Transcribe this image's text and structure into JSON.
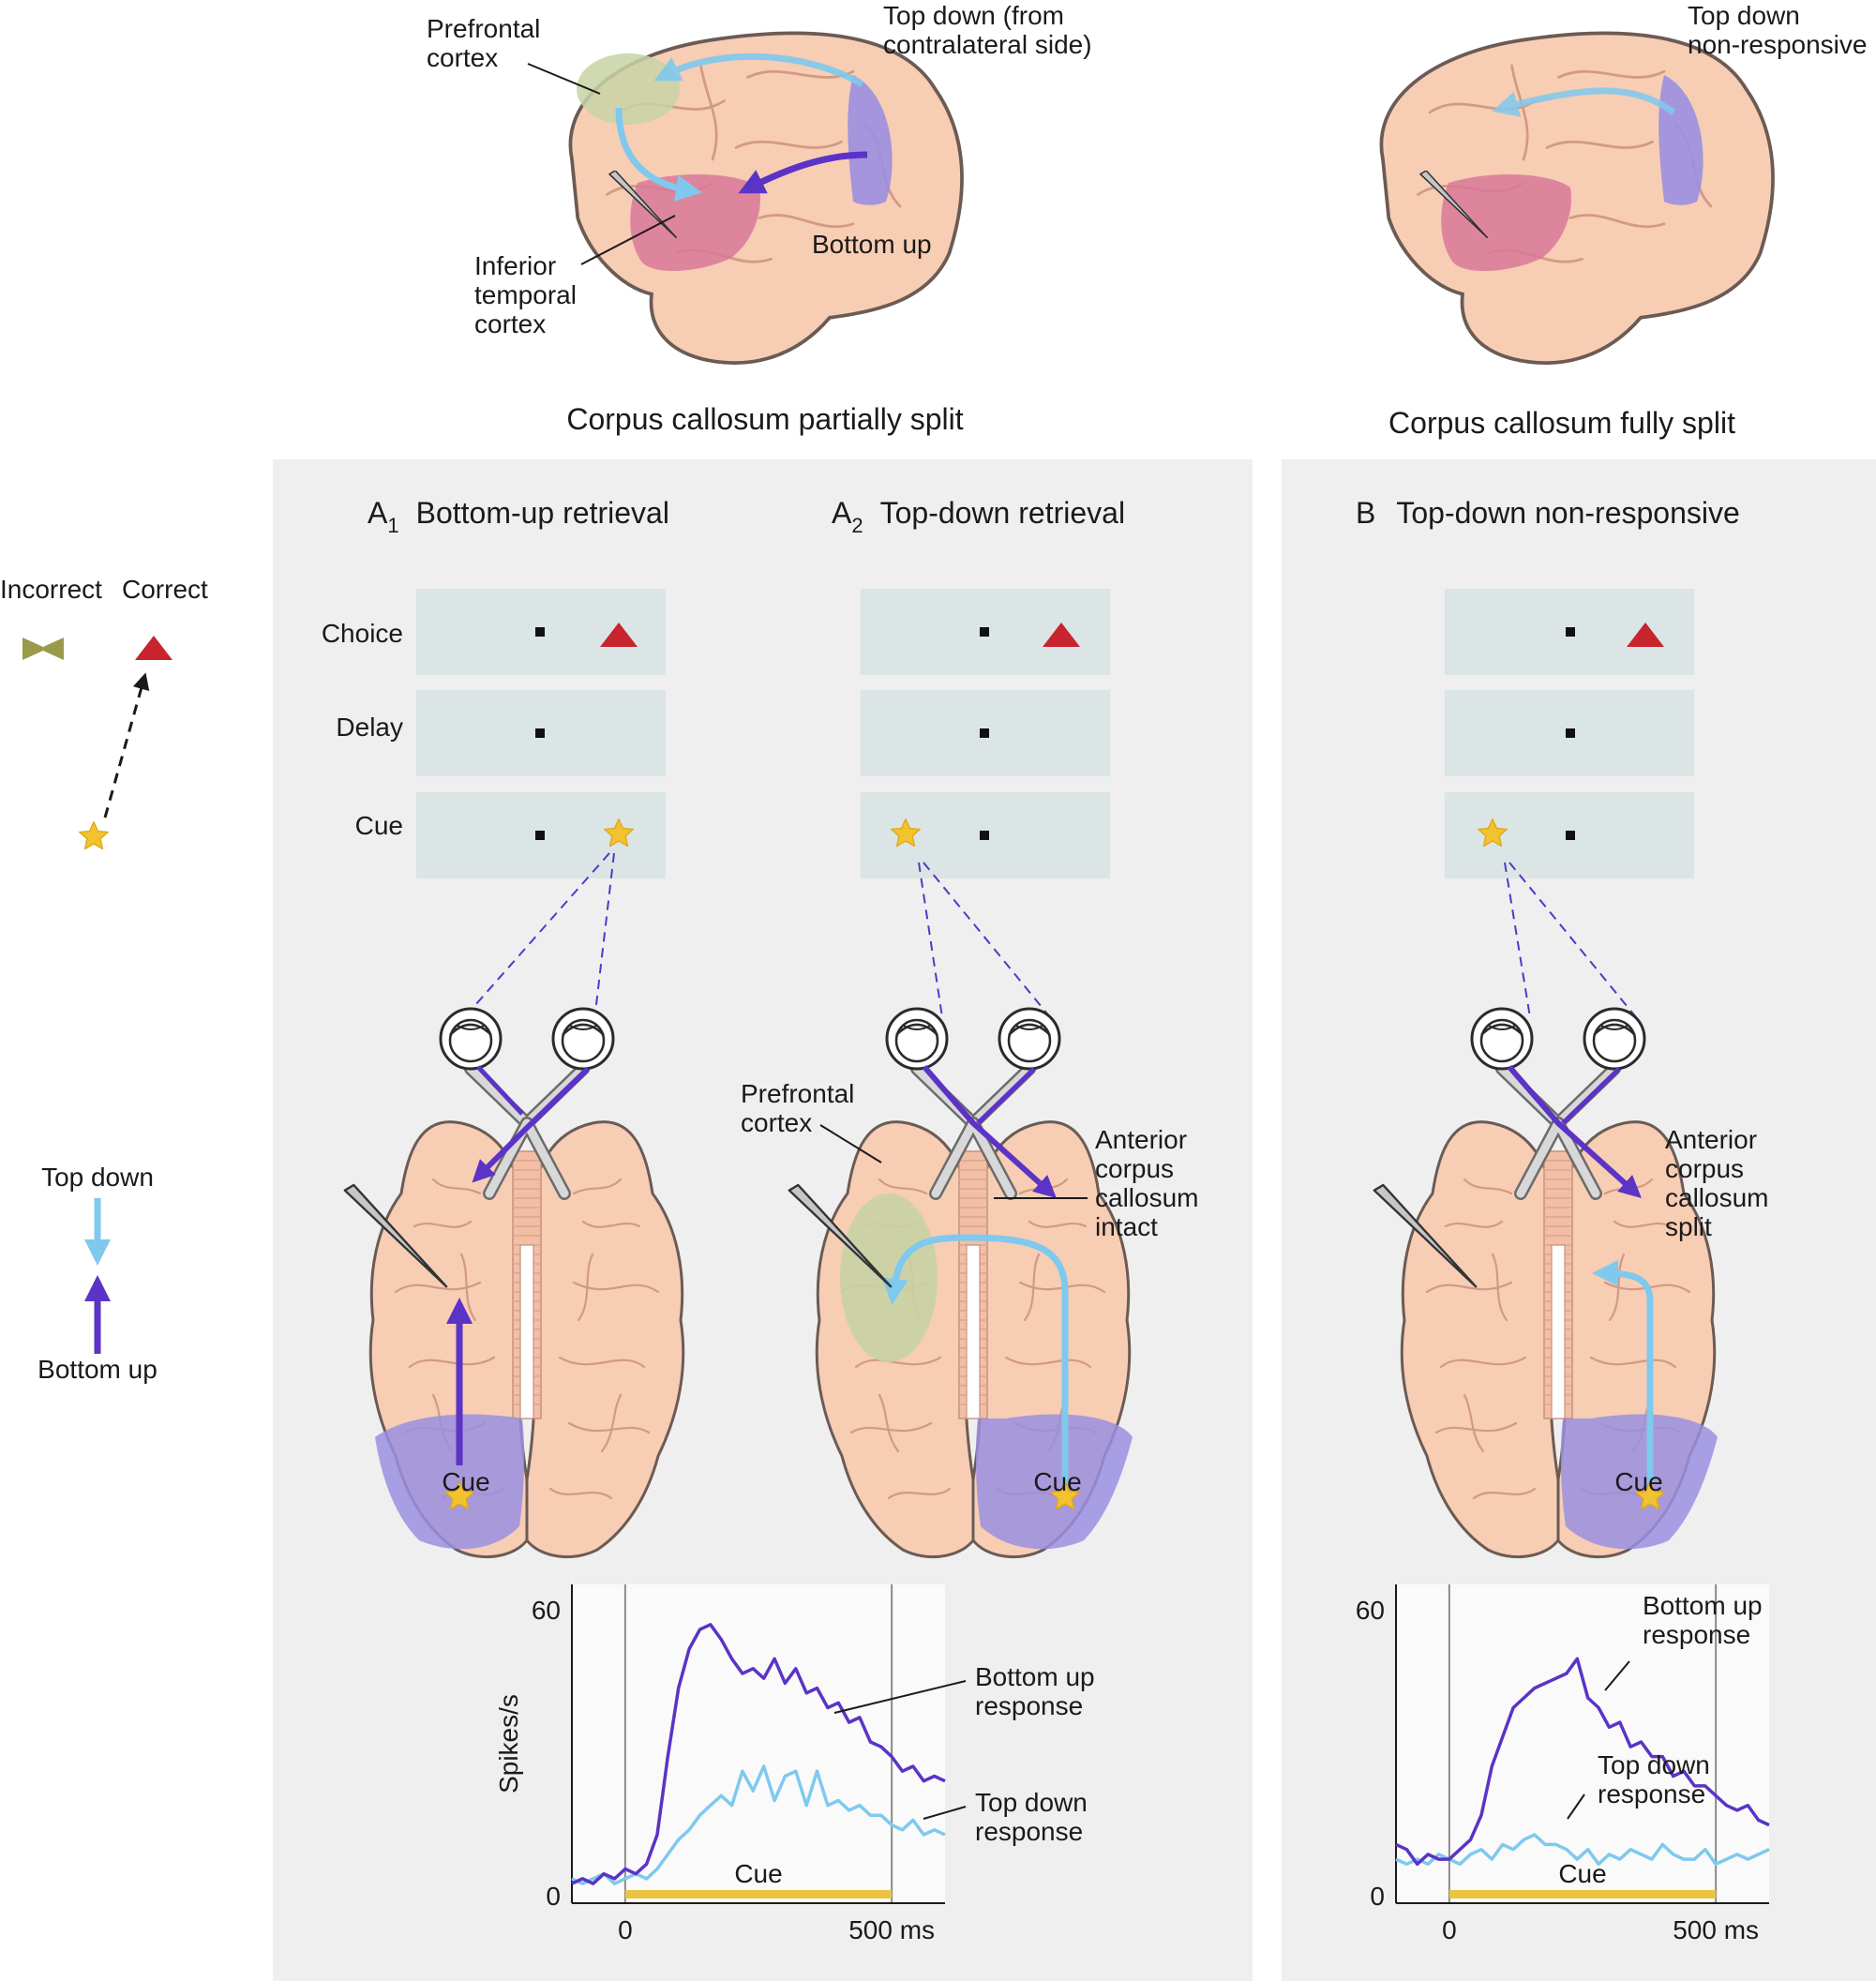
{
  "colors": {
    "top_down": "#7fc9ee",
    "bottom_up": "#5b33c6",
    "brain_fill": "#f7cdb4",
    "brain_stroke": "#6b5b55",
    "prefrontal": "#c8d3a4",
    "inferior_temporal": "#d9789a",
    "visual_cortex": "#9a8fe0",
    "panel_bg": "#efefef",
    "screen_bg": "#dce5e5",
    "star": "#f2c230",
    "correct": "#c8242e",
    "incorrect": "#9a9a4a",
    "cue_bar": "#e8c440",
    "chart_bg": "#fafafa"
  },
  "icons": {
    "star": "star-icon",
    "correct": "triangle-icon",
    "incorrect": "bowtie-icon",
    "electrode": "electrode-icon"
  },
  "top": {
    "left_brain": {
      "prefrontal": [
        "Prefrontal",
        "cortex"
      ],
      "top_down": [
        "Top down (from",
        "contralateral side)"
      ],
      "bottom_up": "Bottom up",
      "inferior_temporal": [
        "Inferior",
        "temporal",
        "cortex"
      ]
    },
    "right_brain": {
      "top_down": [
        "Top down",
        "non-responsive"
      ]
    }
  },
  "sections": {
    "partial": "Corpus callosum partially split",
    "full": "Corpus callosum fully split"
  },
  "legend": {
    "incorrect": "Incorrect",
    "correct": "Correct",
    "top_down": "Top down",
    "bottom_up": "Bottom up"
  },
  "panels": {
    "a1": {
      "letter": "A",
      "sub": "1",
      "title": "Bottom-up retrieval"
    },
    "a2": {
      "letter": "A",
      "sub": "2",
      "title": "Top-down retrieval"
    },
    "b": {
      "letter": "B",
      "title": "Top-down non-responsive"
    }
  },
  "rows": {
    "choice": "Choice",
    "delay": "Delay",
    "cue": "Cue"
  },
  "brain_labels": {
    "cue": "Cue",
    "prefrontal": [
      "Prefrontal",
      "cortex"
    ],
    "intact": [
      "Anterior",
      "corpus",
      "callosum",
      "intact"
    ],
    "split": [
      "Anterior",
      "corpus",
      "callosum",
      "split"
    ]
  },
  "chart_data": [
    {
      "type": "line",
      "ylabel": "Spikes/s",
      "ylim": [
        0,
        60
      ],
      "xlim": [
        -100,
        600
      ],
      "x_ticks": [
        0,
        500
      ],
      "x_tick_labels": [
        "0",
        "500 ms"
      ],
      "y_ticks": [
        0,
        60
      ],
      "y_tick_labels": [
        "0",
        "60"
      ],
      "event_lines": [
        0,
        500
      ],
      "cue_bar": {
        "label": "Cue",
        "start": 0,
        "end": 500
      },
      "grid": false,
      "series": [
        {
          "name": "Bottom up response",
          "label_lines": [
            "Bottom up",
            "response"
          ],
          "color": "#5b33c6",
          "x": [
            -100,
            -80,
            -60,
            -40,
            -20,
            0,
            20,
            40,
            60,
            80,
            100,
            120,
            140,
            160,
            180,
            200,
            220,
            240,
            260,
            280,
            300,
            320,
            340,
            360,
            380,
            400,
            420,
            440,
            460,
            480,
            500,
            520,
            540,
            560,
            580,
            600
          ],
          "y": [
            4,
            5,
            4,
            6,
            5,
            7,
            6,
            8,
            14,
            30,
            44,
            52,
            56,
            57,
            54,
            50,
            47,
            48,
            46,
            50,
            45,
            48,
            43,
            44,
            40,
            41,
            37,
            38,
            33,
            32,
            30,
            27,
            28,
            25,
            26,
            25
          ]
        },
        {
          "name": "Top down response",
          "label_lines": [
            "Top down",
            "response"
          ],
          "color": "#7fc9ee",
          "x": [
            -100,
            -80,
            -60,
            -40,
            -20,
            0,
            20,
            40,
            60,
            80,
            100,
            120,
            140,
            160,
            180,
            200,
            220,
            240,
            260,
            280,
            300,
            320,
            340,
            360,
            380,
            400,
            420,
            440,
            460,
            480,
            500,
            520,
            540,
            560,
            580,
            600
          ],
          "y": [
            5,
            4,
            5,
            6,
            4,
            5,
            6,
            5,
            7,
            10,
            13,
            15,
            18,
            20,
            22,
            20,
            27,
            23,
            28,
            21,
            26,
            27,
            20,
            27,
            20,
            21,
            19,
            20,
            18,
            18,
            16,
            15,
            17,
            14,
            15,
            14
          ]
        }
      ]
    },
    {
      "type": "line",
      "ylim": [
        0,
        60
      ],
      "xlim": [
        -100,
        600
      ],
      "x_ticks": [
        0,
        500
      ],
      "x_tick_labels": [
        "0",
        "500 ms"
      ],
      "y_ticks": [
        0,
        60
      ],
      "y_tick_labels": [
        "0",
        "60"
      ],
      "event_lines": [
        0,
        500
      ],
      "cue_bar": {
        "label": "Cue",
        "start": 0,
        "end": 500
      },
      "grid": false,
      "series": [
        {
          "name": "Bottom up response",
          "label_lines": [
            "Bottom up",
            "response"
          ],
          "color": "#5b33c6",
          "x": [
            -100,
            -80,
            -60,
            -40,
            -20,
            0,
            20,
            40,
            60,
            80,
            100,
            120,
            140,
            160,
            180,
            200,
            220,
            240,
            260,
            280,
            300,
            320,
            340,
            360,
            380,
            400,
            420,
            440,
            460,
            480,
            500,
            520,
            540,
            560,
            580,
            600
          ],
          "y": [
            12,
            11,
            8,
            10,
            9,
            9,
            11,
            13,
            18,
            28,
            34,
            40,
            42,
            44,
            45,
            46,
            47,
            50,
            42,
            40,
            36,
            37,
            32,
            33,
            30,
            30,
            26,
            27,
            24,
            24,
            22,
            20,
            19,
            20,
            17,
            16
          ]
        },
        {
          "name": "Top down response",
          "label_lines": [
            "Top down",
            "response"
          ],
          "color": "#7fc9ee",
          "x": [
            -100,
            -80,
            -60,
            -40,
            -20,
            0,
            20,
            40,
            60,
            80,
            100,
            120,
            140,
            160,
            180,
            200,
            220,
            240,
            260,
            280,
            300,
            320,
            340,
            360,
            380,
            400,
            420,
            440,
            460,
            480,
            500,
            520,
            540,
            560,
            580,
            600
          ],
          "y": [
            9,
            8,
            9,
            8,
            10,
            9,
            8,
            10,
            11,
            9,
            12,
            11,
            13,
            14,
            12,
            12,
            11,
            9,
            11,
            8,
            10,
            9,
            11,
            10,
            9,
            12,
            10,
            9,
            9,
            11,
            8,
            9,
            10,
            9,
            10,
            11
          ]
        }
      ]
    }
  ]
}
